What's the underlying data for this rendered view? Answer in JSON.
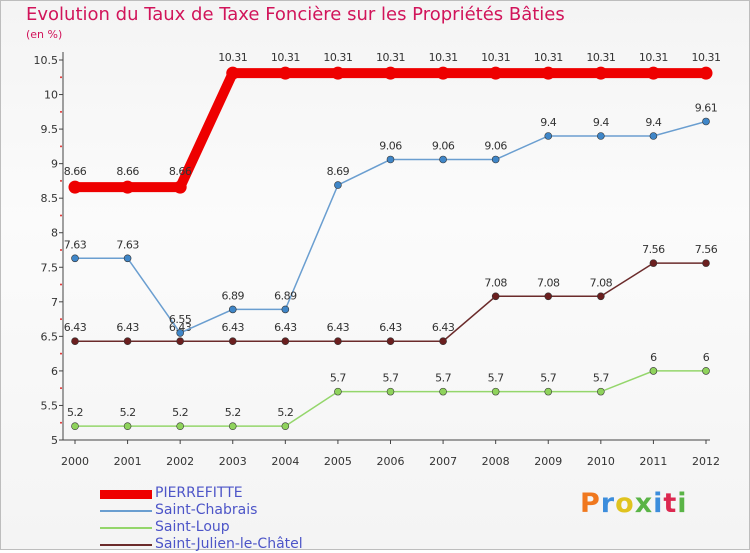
{
  "title": "Evolution du Taux de Taxe Foncière sur les Propriétés Bâties",
  "unit_label": "(en %)",
  "logo": {
    "text": "Proxiti",
    "colors": [
      "#f0781e",
      "#3c8ddc",
      "#e0c31e",
      "#5ab446",
      "#3c8ddc",
      "#dc2850",
      "#5ab446"
    ]
  },
  "chart_data": {
    "type": "line",
    "title": "Evolution du Taux de Taxe Foncière sur les Propriétés Bâties",
    "ylabel": "(en %)",
    "xlabel": "",
    "ylim": [
      5,
      10.5
    ],
    "grid": false,
    "x": [
      "2000",
      "2001",
      "2002",
      "2003",
      "2004",
      "2005",
      "2006",
      "2007",
      "2008",
      "2009",
      "2010",
      "2011",
      "2012"
    ],
    "yticks": [
      {
        "value": 5,
        "label": "5"
      },
      {
        "value": 5.5,
        "label": "5.5"
      },
      {
        "value": 6,
        "label": "6"
      },
      {
        "value": 6.5,
        "label": "6.5"
      },
      {
        "value": 7,
        "label": "7"
      },
      {
        "value": 7.5,
        "label": "7.5"
      },
      {
        "value": 8,
        "label": "8"
      },
      {
        "value": 8.5,
        "label": "8.5"
      },
      {
        "value": 9,
        "label": "9"
      },
      {
        "value": 9.5,
        "label": "9.5"
      },
      {
        "value": 10,
        "label": "10"
      },
      {
        "value": 10.5,
        "label": "10.5"
      }
    ],
    "series": [
      {
        "name": "Saint-Loup",
        "color": "#94d66b",
        "marker": "#8fd35c",
        "values": [
          5.2,
          5.2,
          5.2,
          5.2,
          5.2,
          5.7,
          5.7,
          5.7,
          5.7,
          5.7,
          5.7,
          6,
          6
        ],
        "labels": [
          "5.2",
          "5.2",
          "5.2",
          "5.2",
          "5.2",
          "5.7",
          "5.7",
          "5.7",
          "5.7",
          "5.7",
          "5.7",
          "6",
          "6"
        ]
      },
      {
        "name": "Saint-Julien-le-Châtel",
        "color": "#6b2b2b",
        "marker": "#6b1f1f",
        "values": [
          6.43,
          6.43,
          6.43,
          6.43,
          6.43,
          6.43,
          6.43,
          6.43,
          7.08,
          7.08,
          7.08,
          7.56,
          7.56
        ],
        "labels": [
          "6.43",
          "6.43",
          "6.43",
          "6.43",
          "6.43",
          "6.43",
          "6.43",
          "6.43",
          "7.08",
          "7.08",
          "7.08",
          "7.56",
          "7.56"
        ]
      },
      {
        "name": "Saint-Chabrais",
        "color": "#6a9ed0",
        "marker": "#3f86c8",
        "values": [
          7.63,
          7.63,
          6.55,
          6.89,
          6.89,
          8.69,
          9.06,
          9.06,
          9.06,
          9.4,
          9.4,
          9.4,
          9.61
        ],
        "labels": [
          "7.63",
          "7.63",
          "6.55",
          "6.89",
          "6.89",
          "8.69",
          "9.06",
          "9.06",
          "9.06",
          "9.4",
          "9.4",
          "9.4",
          "9.61"
        ]
      },
      {
        "name": "PIERREFITTE",
        "color": "#ee0000",
        "marker": "#ee0000",
        "values": [
          8.66,
          8.66,
          8.66,
          10.31,
          10.31,
          10.31,
          10.31,
          10.31,
          10.31,
          10.31,
          10.31,
          10.31,
          10.31
        ],
        "labels": [
          "8.66",
          "8.66",
          "8.66",
          "10.31",
          "10.31",
          "10.31",
          "10.31",
          "10.31",
          "10.31",
          "10.31",
          "10.31",
          "10.31",
          "10.31"
        ]
      }
    ],
    "legend": [
      {
        "name": "PIERREFITTE",
        "color": "#ee0000"
      },
      {
        "name": "Saint-Chabrais",
        "color": "#6a9ed0"
      },
      {
        "name": "Saint-Loup",
        "color": "#94d66b"
      },
      {
        "name": "Saint-Julien-le-Châtel",
        "color": "#6b2b2b"
      }
    ],
    "legend_position": "bottom-left"
  }
}
